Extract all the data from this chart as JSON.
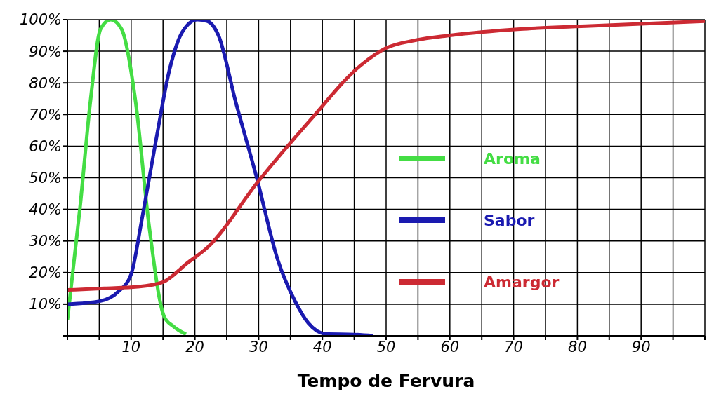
{
  "chart_data": {
    "type": "line",
    "xlabel": "Tempo de Fervura",
    "xlim": [
      0,
      100
    ],
    "xticks": [
      {
        "value": 0,
        "label": null
      },
      {
        "value": 5,
        "label": null
      },
      10,
      {
        "value": 15,
        "label": null
      },
      20,
      {
        "value": 25,
        "label": null
      },
      30,
      {
        "value": 35,
        "label": null
      },
      40,
      {
        "value": 45,
        "label": null
      },
      50,
      {
        "value": 55,
        "label": null
      },
      60,
      {
        "value": 65,
        "label": null
      },
      70,
      {
        "value": 75,
        "label": null
      },
      80,
      {
        "value": 85,
        "label": null
      },
      90,
      {
        "value": 95,
        "label": null
      },
      {
        "value": 100,
        "label": null
      }
    ],
    "ylim": [
      0,
      100
    ],
    "yticks": [
      {
        "value": 0,
        "label": null
      },
      {
        "value": 10,
        "label": "10%"
      },
      {
        "value": 20,
        "label": "20%"
      },
      {
        "value": 30,
        "label": "30%"
      },
      {
        "value": 40,
        "label": "40%"
      },
      {
        "value": 50,
        "label": "50%"
      },
      {
        "value": 60,
        "label": "60%"
      },
      {
        "value": 70,
        "label": "70%"
      },
      {
        "value": 80,
        "label": "80%"
      },
      {
        "value": 90,
        "label": "90%"
      },
      {
        "value": 100,
        "label": "100%"
      }
    ],
    "grid": true,
    "legend": "right",
    "marker": "none",
    "line_style": "solid",
    "series": [
      {
        "name": "Aroma",
        "color": "#44dd44",
        "x": [
          0,
          2,
          3.6,
          5.2,
          6.8,
          8.5,
          10.7,
          12.8,
          15.2,
          16.6,
          18.6
        ],
        "values": [
          5,
          41,
          74,
          97,
          100,
          97,
          74,
          35,
          6,
          3,
          0.5
        ]
      },
      {
        "name": "Sabor",
        "color": "#1a1ab0",
        "x": [
          0,
          5.2,
          8,
          10,
          11.7,
          14,
          16,
          18,
          20.4,
          22,
          23.7,
          26.4,
          29.7,
          33,
          35.7,
          37.8,
          40.5,
          45,
          48
        ],
        "values": [
          10,
          11,
          14,
          19.5,
          37,
          63,
          84,
          96,
          100,
          99.5,
          95,
          74,
          50,
          24,
          11,
          4,
          0.6,
          0.4,
          0
        ]
      },
      {
        "name": "Amargor",
        "color": "#cc2a33",
        "x": [
          0,
          5.8,
          11,
          15,
          18.8,
          22,
          30,
          38,
          46,
          50,
          54.7,
          60,
          71,
          82,
          100
        ],
        "values": [
          14.5,
          15,
          15.5,
          17,
          23,
          28,
          49,
          68,
          85.5,
          91,
          93.5,
          95,
          97,
          98,
          99.5
        ]
      }
    ]
  }
}
